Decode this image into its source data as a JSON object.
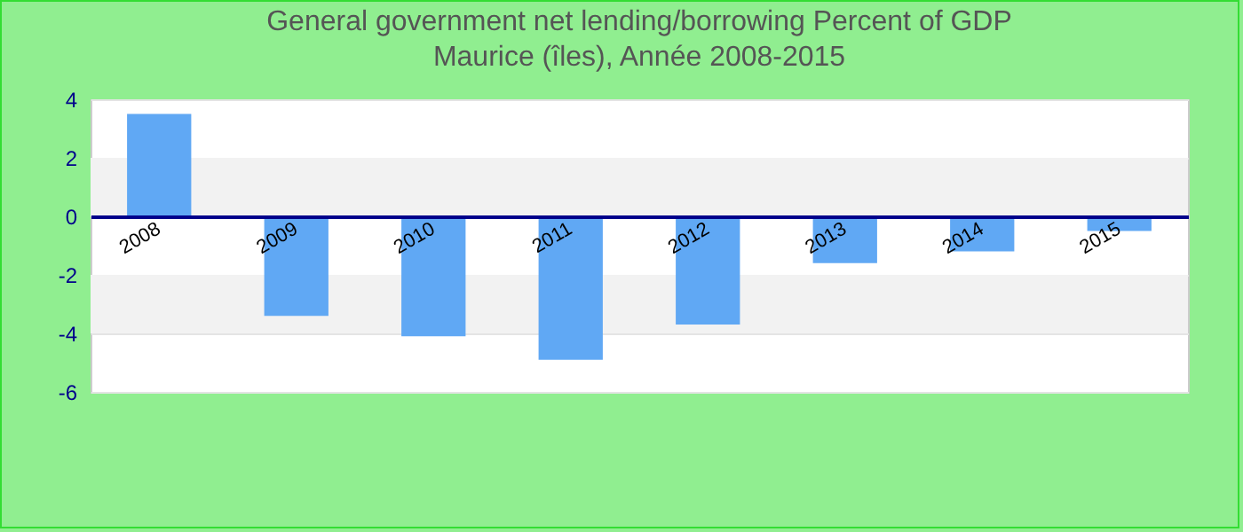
{
  "chart_data": {
    "type": "bar",
    "title": "General government net lending/borrowing  Percent of GDP",
    "subtitle": "Maurice (îles), Année 2008-2015",
    "categories": [
      "2008",
      "2009",
      "2010",
      "2011",
      "2012",
      "2013",
      "2014",
      "2015"
    ],
    "values": [
      3.5,
      -3.4,
      -4.1,
      -4.9,
      -3.7,
      -1.6,
      -1.2,
      -0.5
    ],
    "color": "#60a8f4",
    "ylim": [
      -6,
      4
    ],
    "yticks": [
      -6,
      -4,
      -2,
      0,
      2,
      4
    ],
    "grid": "y"
  }
}
